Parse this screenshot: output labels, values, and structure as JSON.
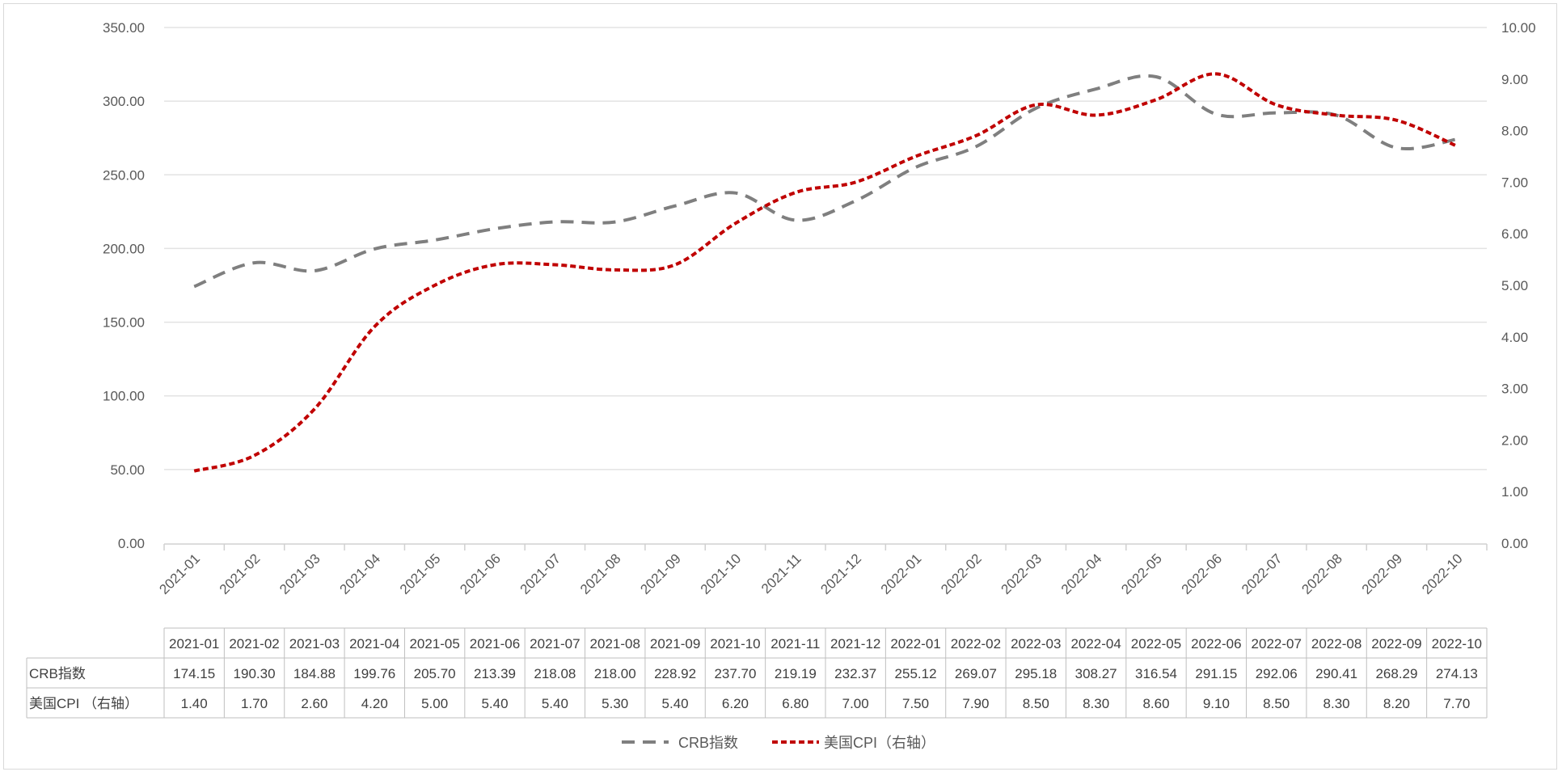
{
  "chart_data": {
    "type": "line",
    "categories": [
      "2021-01",
      "2021-02",
      "2021-03",
      "2021-04",
      "2021-05",
      "2021-06",
      "2021-07",
      "2021-08",
      "2021-09",
      "2021-10",
      "2021-11",
      "2021-12",
      "2022-01",
      "2022-02",
      "2022-03",
      "2022-04",
      "2022-05",
      "2022-06",
      "2022-07",
      "2022-08",
      "2022-09",
      "2022-10"
    ],
    "series": [
      {
        "name": "CRB指数",
        "axis": "left",
        "color": "#7f7f7f",
        "dash": "dashed",
        "values": [
          174.15,
          190.3,
          184.88,
          199.76,
          205.7,
          213.39,
          218.08,
          218.0,
          228.92,
          237.7,
          219.19,
          232.37,
          255.12,
          269.07,
          295.18,
          308.27,
          316.54,
          291.15,
          292.06,
          290.41,
          268.29,
          274.13
        ],
        "labels": [
          "174.15",
          "190.30",
          "184.88",
          "199.76",
          "205.70",
          "213.39",
          "218.08",
          "218.00",
          "228.92",
          "237.70",
          "219.19",
          "232.37",
          "255.12",
          "269.07",
          "295.18",
          "308.27",
          "316.54",
          "291.15",
          "292.06",
          "290.41",
          "268.29",
          "274.13"
        ]
      },
      {
        "name": "美国CPI（右轴）",
        "table_name": "美国CPI （右轴）",
        "axis": "right",
        "color": "#c00000",
        "dash": "dotted",
        "values": [
          1.4,
          1.7,
          2.6,
          4.2,
          5.0,
          5.4,
          5.4,
          5.3,
          5.4,
          6.2,
          6.8,
          7.0,
          7.5,
          7.9,
          8.5,
          8.3,
          8.6,
          9.1,
          8.5,
          8.3,
          8.2,
          7.7
        ],
        "labels": [
          "1.40",
          "1.70",
          "2.60",
          "4.20",
          "5.00",
          "5.40",
          "5.40",
          "5.30",
          "5.40",
          "6.20",
          "6.80",
          "7.00",
          "7.50",
          "7.90",
          "8.50",
          "8.30",
          "8.60",
          "9.10",
          "8.50",
          "8.30",
          "8.20",
          "7.70"
        ]
      }
    ],
    "y_left": {
      "min": 0,
      "max": 350,
      "step": 50,
      "tick_labels": [
        "0.00",
        "50.00",
        "100.00",
        "150.00",
        "200.00",
        "250.00",
        "300.00",
        "350.00"
      ]
    },
    "y_right": {
      "min": 0,
      "max": 10,
      "step": 1,
      "tick_labels": [
        "0.00",
        "1.00",
        "2.00",
        "3.00",
        "4.00",
        "5.00",
        "6.00",
        "7.00",
        "8.00",
        "9.00",
        "10.00"
      ]
    },
    "grid": true,
    "legend_position": "bottom",
    "data_table": true
  }
}
